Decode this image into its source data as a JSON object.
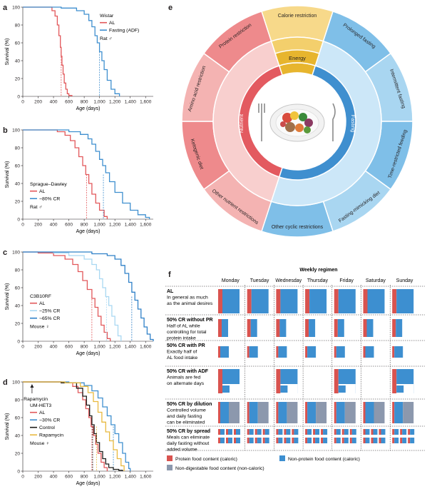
{
  "colors": {
    "al": "#e2575a",
    "fast": "#3f8fcf",
    "cr25": "#a9d8f2",
    "cr65": "#2f80c8",
    "control": "#1d1d1b",
    "rapa": "#e8b93f",
    "nutrient": "#e35a60",
    "nutrient_light": "#f4b3b2",
    "energy": "#e7b52e",
    "energy_light": "#f7d98a",
    "fasting": "#3f8fcf",
    "fasting_light": "#a9d6f1",
    "protein": "#d9534f",
    "nonprotein": "#3d8fd0",
    "nondigest": "#8c98ad"
  },
  "panels": {
    "a": {
      "letter": "a",
      "ylabel": "Survival (%)",
      "xlabel": "Age (days)",
      "yticks": [
        "100",
        "80",
        "60",
        "40",
        "20",
        "0"
      ],
      "xticks": [
        "0",
        "200",
        "400",
        "600",
        "800",
        "1,000",
        "1,200",
        "1,400",
        "1,600"
      ],
      "legend_title": "Wistar",
      "legend": [
        {
          "label": "AL",
          "color": "#e2575a"
        },
        {
          "label": "Fasting (ADF)",
          "color": "#3f8fcf"
        }
      ],
      "species": "Rat ♂"
    },
    "b": {
      "letter": "b",
      "ylabel": "Survival (%)",
      "xlabel": "Age (days)",
      "yticks": [
        "100",
        "80",
        "60",
        "40",
        "20",
        "0"
      ],
      "xticks": [
        "0",
        "200",
        "400",
        "600",
        "800",
        "1,000",
        "1,200",
        "1,400",
        "1,600"
      ],
      "legend_title": "Sprague–Dawley",
      "legend": [
        {
          "label": "AL",
          "color": "#e2575a"
        },
        {
          "label": "~80% CR",
          "color": "#3f8fcf"
        }
      ],
      "species": "Rat ♂"
    },
    "c": {
      "letter": "c",
      "ylabel": "Survival (%)",
      "xlabel": "Age (days)",
      "yticks": [
        "100",
        "80",
        "60",
        "40",
        "20",
        "0"
      ],
      "xticks": [
        "0",
        "200",
        "400",
        "600",
        "800",
        "1,000",
        "1,200",
        "1,400",
        "1,600"
      ],
      "legend_title": "C3B10RF",
      "legend": [
        {
          "label": "AL",
          "color": "#e2575a"
        },
        {
          "label": "~25% CR",
          "color": "#a9d8f2"
        },
        {
          "label": "~65% CR",
          "color": "#2f80c8"
        }
      ],
      "species": "Mouse ♀"
    },
    "d": {
      "letter": "d",
      "ylabel": "Survival (%)",
      "xlabel": "Age (days)",
      "yticks": [
        "100",
        "80",
        "60",
        "40",
        "20",
        "0"
      ],
      "xticks": [
        "0",
        "200",
        "400",
        "600",
        "800",
        "1,000",
        "1,200",
        "1,400",
        "1,600"
      ],
      "legend_title": "UM-HET3",
      "legend": [
        {
          "label": "AL",
          "color": "#e2575a"
        },
        {
          "label": "~30% CR",
          "color": "#3f8fcf"
        },
        {
          "label": "Control",
          "color": "#1d1d1b"
        },
        {
          "label": "Rapamycin",
          "color": "#e8b93f"
        }
      ],
      "species": "Mouse ♀",
      "annotation": "Rapamycin"
    }
  },
  "chart_data": [
    {
      "type": "line",
      "panel": "a",
      "xlabel": "Age (days)",
      "ylabel": "Survival (%)",
      "xlim": [
        0,
        1700
      ],
      "ylim": [
        0,
        100
      ],
      "series": [
        {
          "name": "AL",
          "x": [
            0,
            300,
            380,
            420,
            450,
            470,
            490,
            500,
            510,
            525,
            540,
            560,
            580,
            600,
            640
          ],
          "y": [
            100,
            100,
            96,
            90,
            80,
            68,
            55,
            45,
            35,
            25,
            15,
            8,
            3,
            1,
            0
          ],
          "median": 500
        },
        {
          "name": "Fasting (ADF)",
          "x": [
            0,
            500,
            700,
            800,
            860,
            900,
            940,
            970,
            1000,
            1030,
            1060,
            1100,
            1150,
            1200,
            1260
          ],
          "y": [
            100,
            99,
            96,
            92,
            85,
            78,
            68,
            60,
            50,
            40,
            30,
            18,
            8,
            3,
            0
          ],
          "median": 1000
        }
      ]
    },
    {
      "type": "line",
      "panel": "b",
      "xlabel": "Age (days)",
      "ylabel": "Survival (%)",
      "xlim": [
        0,
        1700
      ],
      "ylim": [
        0,
        100
      ],
      "series": [
        {
          "name": "AL",
          "x": [
            0,
            300,
            450,
            550,
            620,
            680,
            730,
            780,
            820,
            860,
            900,
            950,
            1000,
            1060,
            1100
          ],
          "y": [
            100,
            100,
            98,
            94,
            88,
            80,
            70,
            60,
            50,
            40,
            28,
            18,
            10,
            3,
            0
          ],
          "median": 830
        },
        {
          "name": "~80% CR",
          "x": [
            0,
            400,
            600,
            750,
            850,
            900,
            950,
            1000,
            1040,
            1080,
            1130,
            1200,
            1300,
            1400,
            1500,
            1600,
            1650
          ],
          "y": [
            100,
            100,
            98,
            95,
            90,
            84,
            76,
            67,
            60,
            52,
            42,
            30,
            18,
            10,
            5,
            2,
            0
          ],
          "median": 1050
        }
      ]
    },
    {
      "type": "line",
      "panel": "c",
      "xlabel": "Age (days)",
      "ylabel": "Survival (%)",
      "xlim": [
        0,
        1700
      ],
      "ylim": [
        0,
        100
      ],
      "series": [
        {
          "name": "AL",
          "x": [
            0,
            200,
            400,
            550,
            650,
            720,
            780,
            840,
            900,
            940,
            980,
            1020,
            1060,
            1100,
            1140
          ],
          "y": [
            100,
            99,
            96,
            92,
            86,
            78,
            68,
            58,
            48,
            38,
            28,
            18,
            10,
            3,
            0
          ],
          "median": 900
        },
        {
          "name": "~25% CR",
          "x": [
            0,
            400,
            600,
            800,
            900,
            960,
            1000,
            1040,
            1080,
            1120,
            1160,
            1200,
            1240,
            1280
          ],
          "y": [
            100,
            99,
            96,
            92,
            86,
            80,
            70,
            60,
            50,
            40,
            28,
            18,
            6,
            0
          ],
          "median": 1090
        },
        {
          "name": "~65% CR",
          "x": [
            0,
            600,
            900,
            1100,
            1200,
            1280,
            1330,
            1380,
            1420,
            1460,
            1500,
            1540,
            1580,
            1620,
            1660,
            1700
          ],
          "y": [
            100,
            100,
            98,
            96,
            92,
            85,
            76,
            66,
            55,
            46,
            36,
            26,
            16,
            8,
            2,
            0
          ],
          "median": 1420
        }
      ]
    },
    {
      "type": "line",
      "panel": "d",
      "xlabel": "Age (days)",
      "ylabel": "Survival (%)",
      "xlim": [
        0,
        1700
      ],
      "ylim": [
        0,
        100
      ],
      "series": [
        {
          "name": "AL",
          "x": [
            0,
            500,
            650,
            720,
            780,
            820,
            860,
            890,
            920,
            950,
            980,
            1020,
            1060,
            1100
          ],
          "y": [
            100,
            99,
            95,
            88,
            80,
            70,
            60,
            50,
            40,
            30,
            20,
            10,
            4,
            0
          ],
          "median": 900
        },
        {
          "name": "~30% CR",
          "x": [
            0,
            600,
            800,
            900,
            980,
            1040,
            1100,
            1150,
            1200,
            1250,
            1300,
            1340,
            1380,
            1400
          ],
          "y": [
            100,
            99,
            96,
            90,
            82,
            72,
            62,
            52,
            42,
            32,
            20,
            10,
            3,
            0
          ],
          "median": 1180
        },
        {
          "name": "Control",
          "x": [
            0,
            500,
            700,
            780,
            830,
            870,
            900,
            930,
            960,
            1000,
            1040,
            1080,
            1120,
            1180,
            1250,
            1300
          ],
          "y": [
            100,
            99,
            93,
            84,
            74,
            62,
            52,
            42,
            32,
            22,
            14,
            8,
            4,
            2,
            1,
            0
          ],
          "median": 910
        },
        {
          "name": "Rapamycin",
          "x": [
            0,
            550,
            750,
            850,
            920,
            980,
            1030,
            1080,
            1130,
            1180,
            1230,
            1280,
            1320
          ],
          "y": [
            100,
            99,
            95,
            88,
            78,
            66,
            55,
            44,
            34,
            24,
            14,
            6,
            0
          ],
          "median": 960
        }
      ]
    }
  ],
  "wheel": {
    "letter": "e",
    "center_segments": [
      {
        "label": "Energy"
      },
      {
        "label": "Nutrient"
      },
      {
        "label": "Fasting"
      }
    ],
    "outer_segments": [
      {
        "label": "Calorie restriction",
        "group": "energy"
      },
      {
        "label": "Prolonged fasting",
        "group": "fasting"
      },
      {
        "label": "Intermittent fasting",
        "group": "fasting"
      },
      {
        "label": "Time-restricted feeding",
        "group": "fasting"
      },
      {
        "label": "Fasting-mimicking diet",
        "group": "fasting"
      },
      {
        "label": "Other cyclic restrictions",
        "group": "fasting"
      },
      {
        "label": "Other nutrient restrictions",
        "group": "nutrient"
      },
      {
        "label": "Ketogenic diet",
        "group": "nutrient"
      },
      {
        "label": "Amino acid restriction",
        "group": "nutrient"
      },
      {
        "label": "Protein restriction",
        "group": "nutrient"
      }
    ]
  },
  "regimen": {
    "letter": "f",
    "title": "Weekly regimen",
    "days": [
      "Monday",
      "Tuesday",
      "Wednesday",
      "Thursday",
      "Friday",
      "Saturday",
      "Sunday"
    ],
    "rows": [
      {
        "title": "AL",
        "desc": [
          "In general as much",
          "as the animal desires"
        ]
      },
      {
        "title": "50% CR without PR",
        "desc": [
          "Half of AL while",
          "controlling for total",
          "protein intake"
        ]
      },
      {
        "title": "50% CR with PR",
        "desc": [
          "Exactly half of",
          "AL food intake"
        ]
      },
      {
        "title": "50% CR with ADF",
        "desc": [
          "Animals are fed",
          "on alternate days"
        ]
      },
      {
        "title": "50% CR by dilution",
        "desc": [
          "Controlled volume",
          "and daily fasting",
          "can be eliminated"
        ]
      },
      {
        "title": "50% CR by spread",
        "desc": [
          "Meals can eliminate",
          "daily fasting without",
          "added volume"
        ]
      }
    ],
    "legend": [
      {
        "label": "Protein food content (caloric)"
      },
      {
        "label": "Non-protein food content (caloric)"
      },
      {
        "label": "Non-digestable food content (non-caloric)"
      }
    ]
  }
}
